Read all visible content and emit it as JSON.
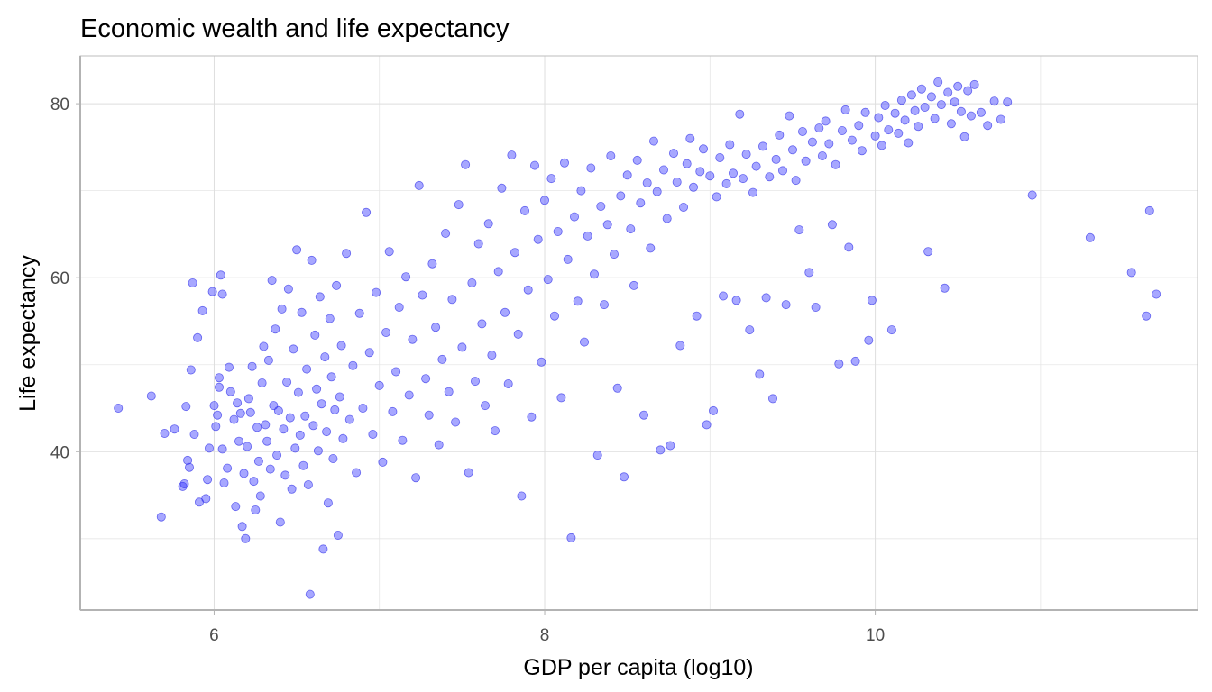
{
  "chart_data": {
    "type": "scatter",
    "title": "Economic wealth and life expectancy",
    "xlabel": "GDP per capita (log10)",
    "ylabel": "Life expectancy",
    "xlim": [
      5.19,
      11.95
    ],
    "ylim": [
      21.8,
      85.5
    ],
    "x_ticks": [
      6,
      8,
      10
    ],
    "x_minor": [
      7,
      9,
      11
    ],
    "y_ticks": [
      40,
      60,
      80
    ],
    "y_minor": [
      30,
      50,
      70
    ],
    "grid": true,
    "legend": "none",
    "point_color": "#3c3cff",
    "point_alpha": 0.45,
    "series": [
      {
        "name": "countries",
        "points": [
          [
            5.42,
            45.0
          ],
          [
            5.62,
            46.4
          ],
          [
            5.68,
            32.5
          ],
          [
            5.7,
            42.1
          ],
          [
            5.76,
            42.6
          ],
          [
            5.81,
            36.0
          ],
          [
            5.82,
            36.3
          ],
          [
            5.83,
            45.2
          ],
          [
            5.84,
            39.0
          ],
          [
            5.85,
            38.2
          ],
          [
            5.86,
            49.4
          ],
          [
            5.87,
            59.4
          ],
          [
            5.88,
            42.0
          ],
          [
            5.9,
            53.1
          ],
          [
            5.91,
            34.2
          ],
          [
            5.93,
            56.2
          ],
          [
            5.95,
            34.6
          ],
          [
            5.96,
            36.8
          ],
          [
            5.97,
            40.4
          ],
          [
            5.99,
            58.4
          ],
          [
            6.0,
            45.3
          ],
          [
            6.01,
            42.9
          ],
          [
            6.02,
            44.2
          ],
          [
            6.03,
            47.4
          ],
          [
            6.03,
            48.5
          ],
          [
            6.04,
            60.3
          ],
          [
            6.05,
            58.1
          ],
          [
            6.05,
            40.3
          ],
          [
            6.06,
            36.4
          ],
          [
            6.08,
            38.1
          ],
          [
            6.09,
            49.7
          ],
          [
            6.1,
            46.9
          ],
          [
            6.12,
            43.7
          ],
          [
            6.13,
            33.7
          ],
          [
            6.14,
            45.6
          ],
          [
            6.15,
            41.2
          ],
          [
            6.16,
            44.4
          ],
          [
            6.17,
            31.4
          ],
          [
            6.18,
            37.5
          ],
          [
            6.19,
            30.0
          ],
          [
            6.2,
            40.6
          ],
          [
            6.21,
            46.1
          ],
          [
            6.22,
            44.5
          ],
          [
            6.23,
            49.8
          ],
          [
            6.24,
            36.6
          ],
          [
            6.25,
            33.3
          ],
          [
            6.26,
            42.8
          ],
          [
            6.27,
            38.9
          ],
          [
            6.28,
            34.9
          ],
          [
            6.29,
            47.9
          ],
          [
            6.3,
            52.1
          ],
          [
            6.31,
            43.1
          ],
          [
            6.32,
            41.2
          ],
          [
            6.33,
            50.5
          ],
          [
            6.34,
            38.0
          ],
          [
            6.35,
            59.7
          ],
          [
            6.36,
            45.3
          ],
          [
            6.37,
            54.1
          ],
          [
            6.38,
            39.6
          ],
          [
            6.39,
            44.7
          ],
          [
            6.4,
            31.9
          ],
          [
            6.41,
            56.4
          ],
          [
            6.42,
            42.6
          ],
          [
            6.43,
            37.3
          ],
          [
            6.44,
            48.0
          ],
          [
            6.45,
            58.7
          ],
          [
            6.46,
            43.9
          ],
          [
            6.47,
            35.7
          ],
          [
            6.48,
            51.8
          ],
          [
            6.49,
            40.4
          ],
          [
            6.5,
            63.2
          ],
          [
            6.51,
            46.8
          ],
          [
            6.52,
            41.9
          ],
          [
            6.53,
            56.0
          ],
          [
            6.54,
            38.4
          ],
          [
            6.55,
            44.1
          ],
          [
            6.56,
            49.5
          ],
          [
            6.57,
            36.2
          ],
          [
            6.58,
            23.6
          ],
          [
            6.59,
            62.0
          ],
          [
            6.6,
            43.0
          ],
          [
            6.61,
            53.4
          ],
          [
            6.62,
            47.2
          ],
          [
            6.63,
            40.1
          ],
          [
            6.64,
            57.8
          ],
          [
            6.65,
            45.5
          ],
          [
            6.66,
            28.8
          ],
          [
            6.67,
            50.9
          ],
          [
            6.68,
            42.3
          ],
          [
            6.69,
            34.1
          ],
          [
            6.7,
            55.3
          ],
          [
            6.71,
            48.6
          ],
          [
            6.72,
            39.2
          ],
          [
            6.73,
            44.8
          ],
          [
            6.74,
            59.1
          ],
          [
            6.75,
            30.4
          ],
          [
            6.76,
            46.3
          ],
          [
            6.77,
            52.2
          ],
          [
            6.78,
            41.5
          ],
          [
            6.8,
            62.8
          ],
          [
            6.82,
            43.7
          ],
          [
            6.84,
            49.9
          ],
          [
            6.86,
            37.6
          ],
          [
            6.88,
            55.9
          ],
          [
            6.9,
            45.0
          ],
          [
            6.92,
            67.5
          ],
          [
            6.94,
            51.4
          ],
          [
            6.96,
            42.0
          ],
          [
            6.98,
            58.3
          ],
          [
            7.0,
            47.6
          ],
          [
            7.02,
            38.8
          ],
          [
            7.04,
            53.7
          ],
          [
            7.06,
            63.0
          ],
          [
            7.08,
            44.6
          ],
          [
            7.1,
            49.2
          ],
          [
            7.12,
            56.6
          ],
          [
            7.14,
            41.3
          ],
          [
            7.16,
            60.1
          ],
          [
            7.18,
            46.5
          ],
          [
            7.2,
            52.9
          ],
          [
            7.22,
            37.0
          ],
          [
            7.24,
            70.6
          ],
          [
            7.26,
            58.0
          ],
          [
            7.28,
            48.4
          ],
          [
            7.3,
            44.2
          ],
          [
            7.32,
            61.6
          ],
          [
            7.34,
            54.3
          ],
          [
            7.36,
            40.8
          ],
          [
            7.38,
            50.6
          ],
          [
            7.4,
            65.1
          ],
          [
            7.42,
            46.9
          ],
          [
            7.44,
            57.5
          ],
          [
            7.46,
            43.4
          ],
          [
            7.48,
            68.4
          ],
          [
            7.5,
            52.0
          ],
          [
            7.52,
            73.0
          ],
          [
            7.54,
            37.6
          ],
          [
            7.56,
            59.4
          ],
          [
            7.58,
            48.1
          ],
          [
            7.6,
            63.9
          ],
          [
            7.62,
            54.7
          ],
          [
            7.64,
            45.3
          ],
          [
            7.66,
            66.2
          ],
          [
            7.68,
            51.1
          ],
          [
            7.7,
            42.4
          ],
          [
            7.72,
            60.7
          ],
          [
            7.74,
            70.3
          ],
          [
            7.76,
            56.0
          ],
          [
            7.78,
            47.8
          ],
          [
            7.8,
            74.1
          ],
          [
            7.82,
            62.9
          ],
          [
            7.84,
            53.5
          ],
          [
            7.86,
            34.9
          ],
          [
            7.88,
            67.7
          ],
          [
            7.9,
            58.6
          ],
          [
            7.92,
            44.0
          ],
          [
            7.94,
            72.9
          ],
          [
            7.96,
            64.4
          ],
          [
            7.98,
            50.3
          ],
          [
            8.0,
            68.9
          ],
          [
            8.02,
            59.8
          ],
          [
            8.04,
            71.4
          ],
          [
            8.06,
            55.6
          ],
          [
            8.08,
            65.3
          ],
          [
            8.1,
            46.2
          ],
          [
            8.12,
            73.2
          ],
          [
            8.14,
            62.1
          ],
          [
            8.16,
            30.1
          ],
          [
            8.18,
            67.0
          ],
          [
            8.2,
            57.3
          ],
          [
            8.22,
            70.0
          ],
          [
            8.24,
            52.6
          ],
          [
            8.26,
            64.8
          ],
          [
            8.28,
            72.6
          ],
          [
            8.3,
            60.4
          ],
          [
            8.32,
            39.6
          ],
          [
            8.34,
            68.2
          ],
          [
            8.36,
            56.9
          ],
          [
            8.38,
            66.1
          ],
          [
            8.4,
            74.0
          ],
          [
            8.42,
            62.7
          ],
          [
            8.44,
            47.3
          ],
          [
            8.46,
            69.4
          ],
          [
            8.48,
            37.1
          ],
          [
            8.5,
            71.8
          ],
          [
            8.52,
            65.6
          ],
          [
            8.54,
            59.1
          ],
          [
            8.56,
            73.5
          ],
          [
            8.58,
            68.6
          ],
          [
            8.6,
            44.2
          ],
          [
            8.62,
            70.9
          ],
          [
            8.64,
            63.4
          ],
          [
            8.66,
            75.7
          ],
          [
            8.68,
            69.9
          ],
          [
            8.7,
            40.2
          ],
          [
            8.72,
            72.4
          ],
          [
            8.74,
            66.8
          ],
          [
            8.76,
            40.7
          ],
          [
            8.78,
            74.3
          ],
          [
            8.8,
            71.0
          ],
          [
            8.82,
            52.2
          ],
          [
            8.84,
            68.1
          ],
          [
            8.86,
            73.1
          ],
          [
            8.88,
            76.0
          ],
          [
            8.9,
            70.4
          ],
          [
            8.92,
            55.6
          ],
          [
            8.94,
            72.2
          ],
          [
            8.96,
            74.8
          ],
          [
            8.98,
            43.1
          ],
          [
            9.0,
            71.7
          ],
          [
            9.02,
            44.7
          ],
          [
            9.04,
            69.3
          ],
          [
            9.06,
            73.8
          ],
          [
            9.08,
            57.9
          ],
          [
            9.1,
            70.8
          ],
          [
            9.12,
            75.3
          ],
          [
            9.14,
            72.0
          ],
          [
            9.16,
            57.4
          ],
          [
            9.18,
            78.8
          ],
          [
            9.2,
            71.4
          ],
          [
            9.22,
            74.2
          ],
          [
            9.24,
            54.0
          ],
          [
            9.26,
            69.8
          ],
          [
            9.28,
            72.8
          ],
          [
            9.3,
            48.9
          ],
          [
            9.32,
            75.1
          ],
          [
            9.34,
            57.7
          ],
          [
            9.36,
            71.6
          ],
          [
            9.38,
            46.1
          ],
          [
            9.4,
            73.6
          ],
          [
            9.42,
            76.4
          ],
          [
            9.44,
            72.3
          ],
          [
            9.46,
            56.9
          ],
          [
            9.48,
            78.6
          ],
          [
            9.5,
            74.7
          ],
          [
            9.52,
            71.2
          ],
          [
            9.54,
            65.5
          ],
          [
            9.56,
            76.8
          ],
          [
            9.58,
            73.4
          ],
          [
            9.6,
            60.6
          ],
          [
            9.62,
            75.6
          ],
          [
            9.64,
            56.6
          ],
          [
            9.66,
            77.2
          ],
          [
            9.68,
            74.0
          ],
          [
            9.7,
            78.0
          ],
          [
            9.72,
            75.4
          ],
          [
            9.74,
            66.1
          ],
          [
            9.76,
            73.0
          ],
          [
            9.78,
            50.1
          ],
          [
            9.8,
            76.9
          ],
          [
            9.82,
            79.3
          ],
          [
            9.84,
            63.5
          ],
          [
            9.86,
            75.8
          ],
          [
            9.88,
            50.4
          ],
          [
            9.9,
            77.5
          ],
          [
            9.92,
            74.6
          ],
          [
            9.94,
            79.0
          ],
          [
            9.96,
            52.8
          ],
          [
            9.98,
            57.4
          ],
          [
            10.0,
            76.3
          ],
          [
            10.02,
            78.4
          ],
          [
            10.04,
            75.2
          ],
          [
            10.06,
            79.8
          ],
          [
            10.08,
            77.0
          ],
          [
            10.1,
            54.0
          ],
          [
            10.12,
            78.9
          ],
          [
            10.14,
            76.6
          ],
          [
            10.16,
            80.4
          ],
          [
            10.18,
            78.1
          ],
          [
            10.2,
            75.5
          ],
          [
            10.22,
            81.0
          ],
          [
            10.24,
            79.2
          ],
          [
            10.26,
            77.4
          ],
          [
            10.28,
            81.7
          ],
          [
            10.3,
            79.6
          ],
          [
            10.32,
            63.0
          ],
          [
            10.34,
            80.8
          ],
          [
            10.36,
            78.3
          ],
          [
            10.38,
            82.5
          ],
          [
            10.4,
            79.9
          ],
          [
            10.42,
            58.8
          ],
          [
            10.44,
            81.3
          ],
          [
            10.46,
            77.7
          ],
          [
            10.48,
            80.2
          ],
          [
            10.5,
            82.0
          ],
          [
            10.52,
            79.1
          ],
          [
            10.54,
            76.2
          ],
          [
            10.56,
            81.5
          ],
          [
            10.58,
            78.6
          ],
          [
            10.6,
            82.2
          ],
          [
            10.64,
            79.0
          ],
          [
            10.68,
            77.5
          ],
          [
            10.72,
            80.3
          ],
          [
            10.76,
            78.2
          ],
          [
            10.8,
            80.2
          ],
          [
            10.95,
            69.5
          ],
          [
            11.3,
            64.6
          ],
          [
            11.55,
            60.6
          ],
          [
            11.64,
            55.6
          ],
          [
            11.66,
            67.7
          ],
          [
            11.7,
            58.1
          ]
        ]
      }
    ]
  }
}
